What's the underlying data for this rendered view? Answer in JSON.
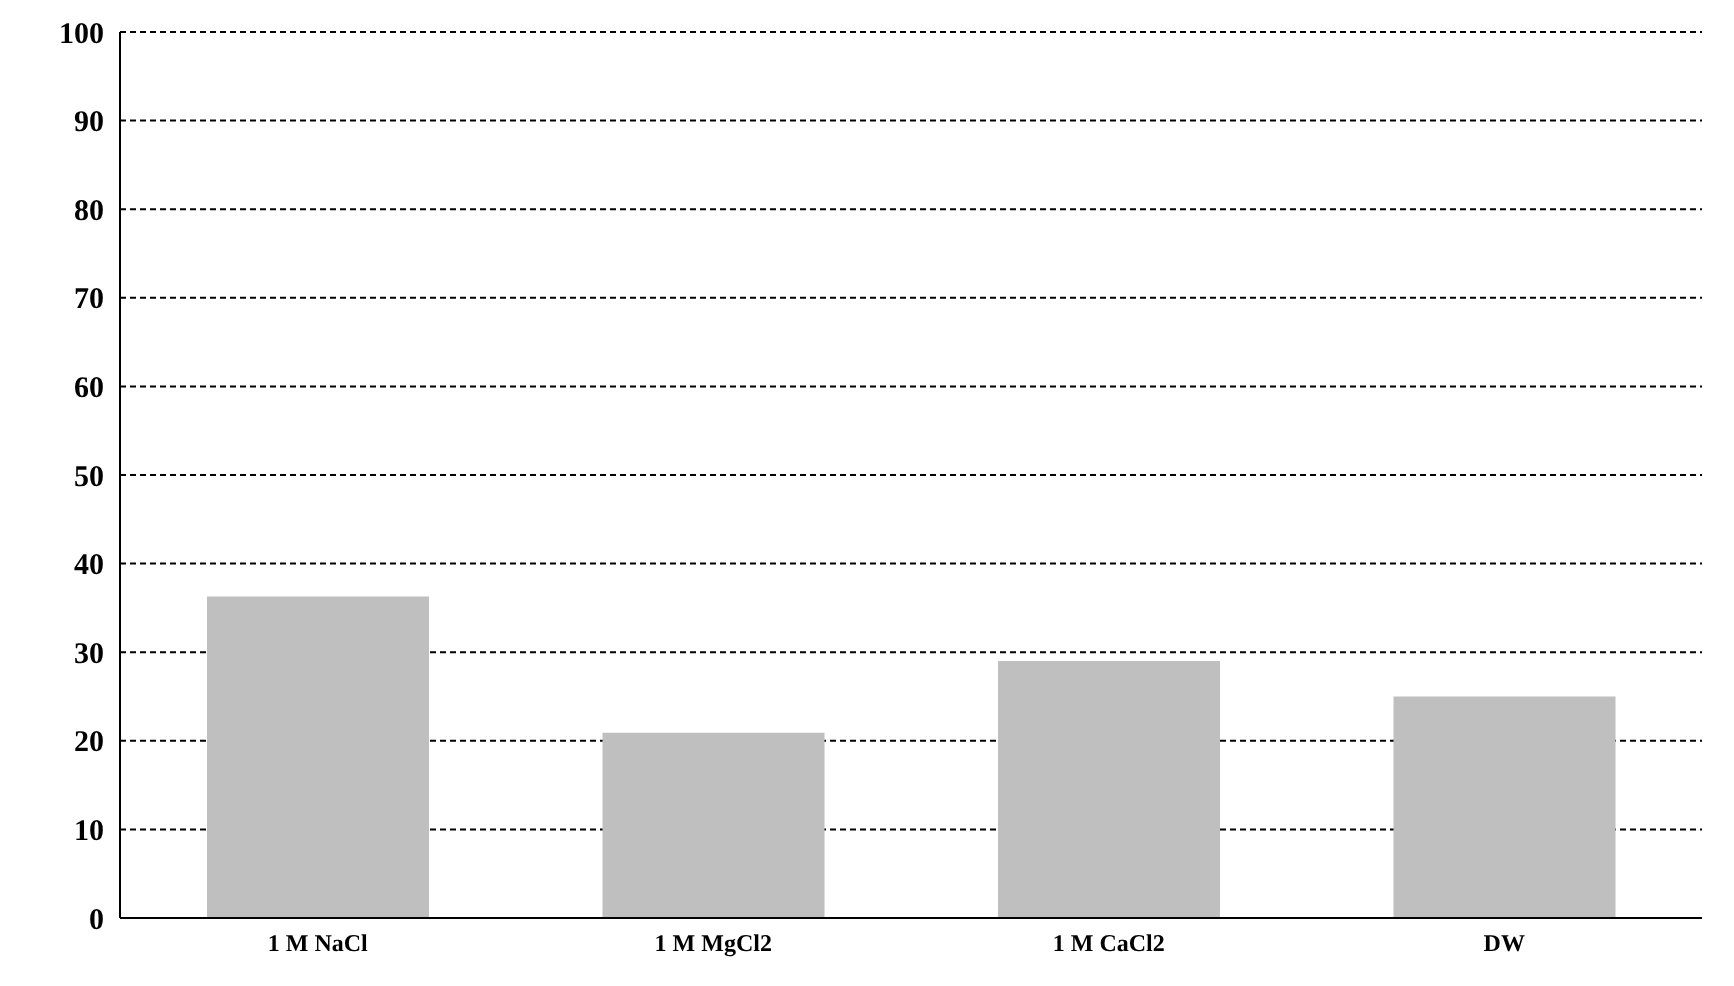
{
  "chart_data": {
    "type": "bar",
    "categories": [
      "1 M NaCl",
      "1 M MgCl2",
      "1 M CaCl2",
      "DW"
    ],
    "values": [
      36.3,
      20.9,
      29.0,
      25.0
    ],
    "color": "#bfbfbf",
    "ylim": [
      0,
      100
    ],
    "yticks": [
      0,
      10,
      20,
      30,
      40,
      50,
      60,
      70,
      80,
      90,
      100
    ],
    "grid": "y"
  }
}
